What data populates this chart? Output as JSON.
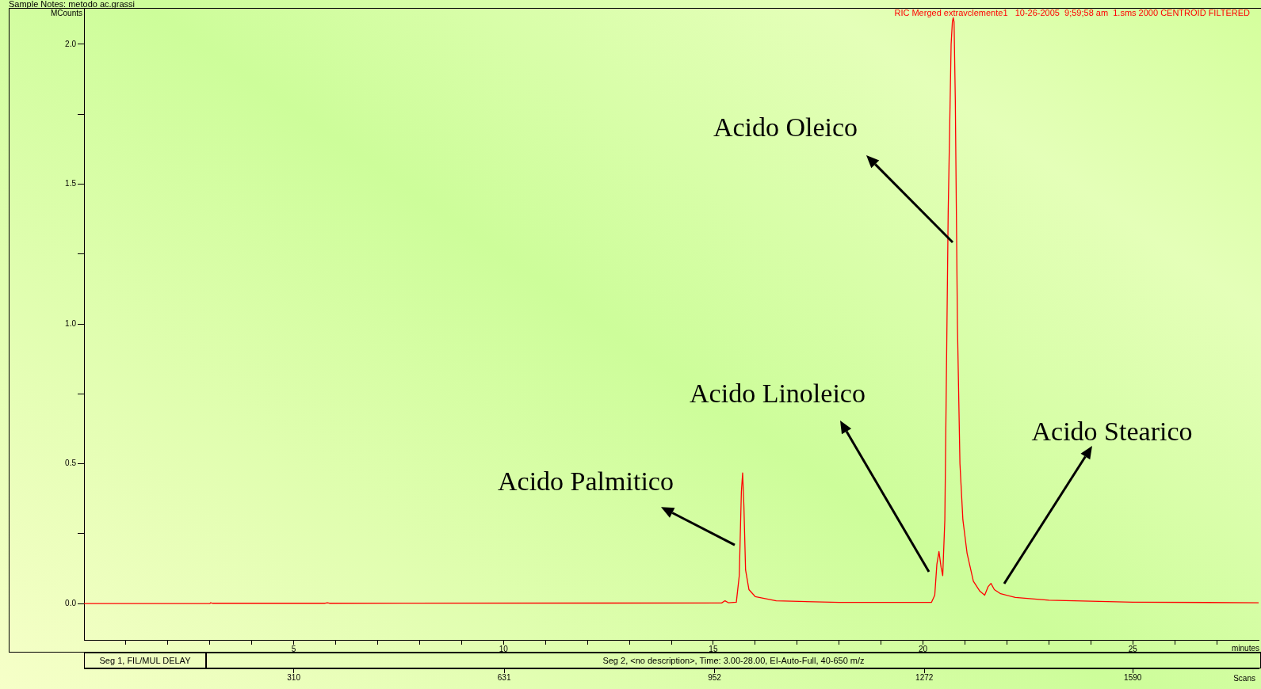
{
  "chart_data": {
    "type": "line",
    "title": "Sample Notes: metodo ac.grassi",
    "subtitle": "RIC Merged extravclemente1   10-26-2005  9;59;58 am  1.sms 2000 CENTROID FILTERED",
    "xlabel": "minutes",
    "ylabel": "MCounts",
    "x2label": "Scans",
    "annotations": [
      {
        "text": "Acido Palmitico",
        "x": 15.7,
        "y": 0.467
      },
      "Acido Linoleico",
      "Acido Oleico",
      "Acido Stearico",
      "Seg 1, FIL/MUL DELAY",
      "Seg 2, <no description>, Time:  3.00-28.00, EI-Auto-Full, 40-650 m/z"
    ],
    "x": [
      0,
      3.0,
      3.02,
      3.06,
      5.75,
      5.8,
      5.85,
      15.2,
      15.28,
      15.36,
      15.55,
      15.62,
      15.67,
      15.7,
      15.73,
      15.77,
      15.85,
      16.0,
      16.5,
      18,
      20.2,
      20.28,
      20.33,
      20.38,
      20.43,
      20.47,
      20.52,
      20.6,
      20.67,
      20.7,
      20.72,
      20.74,
      20.77,
      20.82,
      20.88,
      20.95,
      21.05,
      21.2,
      21.35,
      21.47,
      21.55,
      21.62,
      21.7,
      21.85,
      22.2,
      23,
      25,
      28
    ],
    "series": [
      {
        "color": "#ff0000",
        "values": [
          0,
          0,
          0.003,
          0.001,
          0.001,
          0.003,
          0.001,
          0.002,
          0.01,
          0.003,
          0.005,
          0.1,
          0.4,
          0.467,
          0.35,
          0.12,
          0.05,
          0.025,
          0.01,
          0.004,
          0.004,
          0.03,
          0.14,
          0.186,
          0.13,
          0.1,
          0.3,
          1.4,
          2.0,
          2.08,
          2.095,
          2.08,
          1.8,
          1.0,
          0.5,
          0.3,
          0.18,
          0.08,
          0.045,
          0.03,
          0.06,
          0.072,
          0.05,
          0.035,
          0.022,
          0.012,
          0.005,
          0.003
        ]
      }
    ],
    "xlim": [
      0,
      28
    ],
    "xticks": [
      {
        "value": 1,
        "label": null
      },
      {
        "value": 2,
        "label": null
      },
      {
        "value": 3,
        "label": null
      },
      {
        "value": 4,
        "label": null
      },
      5,
      {
        "value": 6,
        "label": null
      },
      {
        "value": 7,
        "label": null
      },
      {
        "value": 8,
        "label": null
      },
      {
        "value": 9,
        "label": null
      },
      10,
      {
        "value": 11,
        "label": null
      },
      {
        "value": 12,
        "label": null
      },
      {
        "value": 13,
        "label": null
      },
      {
        "value": 14,
        "label": null
      },
      15,
      {
        "value": 16,
        "label": null
      },
      {
        "value": 17,
        "label": null
      },
      {
        "value": 18,
        "label": null
      },
      {
        "value": 19,
        "label": null
      },
      20,
      {
        "value": 21,
        "label": null
      },
      {
        "value": 22,
        "label": null
      },
      {
        "value": 23,
        "label": null
      },
      {
        "value": 24,
        "label": null
      },
      25,
      {
        "value": 26,
        "label": null
      },
      {
        "value": 27,
        "label": null
      }
    ],
    "ylim": [
      -0.13,
      2.13
    ],
    "yticks": [
      {
        "value": 0,
        "label": "0.0"
      },
      {
        "value": 0.25,
        "label": null
      },
      {
        "value": 0.5,
        "label": "0.5"
      },
      {
        "value": 0.75,
        "label": null
      },
      {
        "value": 1,
        "label": "1.0"
      },
      {
        "value": 1.25,
        "label": null
      },
      {
        "value": 1.5,
        "label": "1.5"
      },
      {
        "value": 1.75,
        "label": null
      },
      {
        "value": 2,
        "label": "2.0"
      }
    ],
    "x2lim": [
      -10,
      1782
    ],
    "x2ticks": [
      310,
      631,
      952,
      1272,
      1590
    ],
    "grid": false,
    "legend": false,
    "marker": "none",
    "line_style": "solid"
  }
}
